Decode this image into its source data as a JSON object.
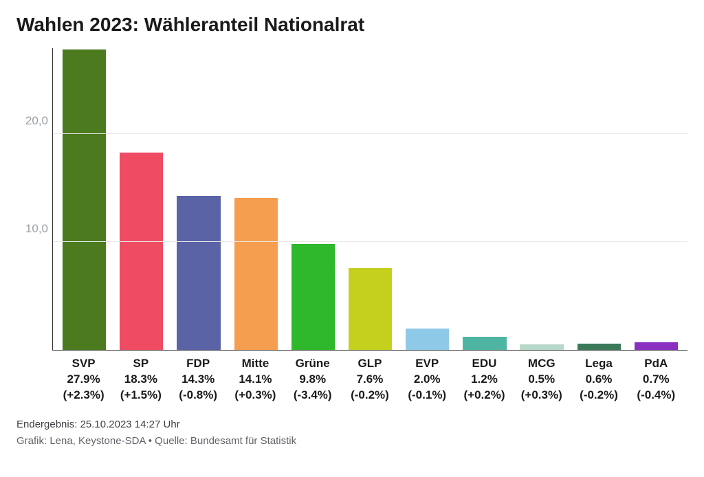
{
  "title": "Wahlen 2023: Wähleranteil Nationalrat",
  "chart": {
    "type": "bar",
    "ylim_max": 28,
    "yticks": [
      10.0,
      20.0
    ],
    "ytick_labels": [
      "10,0",
      "20,0"
    ],
    "grid_color": "#e8e8e8",
    "axis_color": "#333333",
    "background_color": "#ffffff",
    "bar_width_ratio": 0.76,
    "parties": [
      {
        "name": "SVP",
        "value": 27.9,
        "delta": "+2.3%",
        "color": "#4b7a1f"
      },
      {
        "name": "SP",
        "value": 18.3,
        "delta": "+1.5%",
        "color": "#ef4b63"
      },
      {
        "name": "FDP",
        "value": 14.3,
        "delta": "-0.8%",
        "color": "#5a63a6"
      },
      {
        "name": "Mitte",
        "value": 14.1,
        "delta": "+0.3%",
        "color": "#f59e50"
      },
      {
        "name": "Grüne",
        "value": 9.8,
        "delta": "-3.4%",
        "color": "#2fb82c"
      },
      {
        "name": "GLP",
        "value": 7.6,
        "delta": "-0.2%",
        "color": "#c4cf1e"
      },
      {
        "name": "EVP",
        "value": 2.0,
        "delta": "-0.1%",
        "color": "#8fc9e8"
      },
      {
        "name": "EDU",
        "value": 1.2,
        "delta": "+0.2%",
        "color": "#4fb5a3"
      },
      {
        "name": "MCG",
        "value": 0.5,
        "delta": "+0.3%",
        "color": "#b8d8c9"
      },
      {
        "name": "Lega",
        "value": 0.6,
        "delta": "-0.2%",
        "color": "#3a7a5a"
      },
      {
        "name": "PdA",
        "value": 0.7,
        "delta": "-0.4%",
        "color": "#8a2fbf"
      }
    ]
  },
  "footer": {
    "note": "Endergebnis: 25.10.2023 14:27 Uhr",
    "credit": "Grafik: Lena, Keystone-SDA • Quelle: Bundesamt für Statistik"
  }
}
